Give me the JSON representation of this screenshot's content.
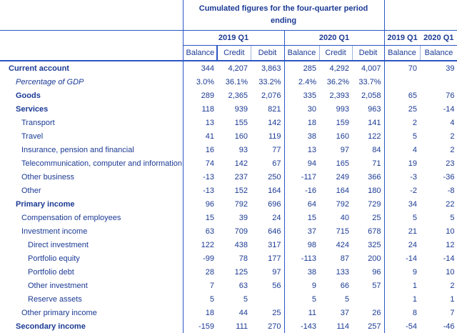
{
  "header": {
    "group_title": "Cumulated figures for the four-quarter period ending",
    "periods": [
      "2019 Q1",
      "2020 Q1"
    ],
    "quarter_periods": [
      "2019 Q1",
      "2020 Q1"
    ],
    "columns": [
      "Balance",
      "Credit",
      "Debit",
      "Balance",
      "Credit",
      "Debit",
      "Balance",
      "Balance"
    ]
  },
  "rows": [
    {
      "label": "Current account",
      "style": "bold l0",
      "v": [
        "344",
        "4,207",
        "3,863",
        "285",
        "4,292",
        "4,007",
        "70",
        "39"
      ]
    },
    {
      "label": "Percentage of GDP",
      "style": "ital l1",
      "v": [
        "3.0%",
        "36.1%",
        "33.2%",
        "2.4%",
        "36.2%",
        "33.7%",
        "",
        ""
      ]
    },
    {
      "label": "Goods",
      "style": "bold l1",
      "v": [
        "289",
        "2,365",
        "2,076",
        "335",
        "2,393",
        "2,058",
        "65",
        "76"
      ]
    },
    {
      "label": "Services",
      "style": "bold l1",
      "v": [
        "118",
        "939",
        "821",
        "30",
        "993",
        "963",
        "25",
        "-14"
      ]
    },
    {
      "label": "Transport",
      "style": "l2",
      "v": [
        "13",
        "155",
        "142",
        "18",
        "159",
        "141",
        "2",
        "4"
      ]
    },
    {
      "label": "Travel",
      "style": "l2",
      "v": [
        "41",
        "160",
        "119",
        "38",
        "160",
        "122",
        "5",
        "2"
      ]
    },
    {
      "label": "Insurance, pension and financial",
      "style": "l2",
      "v": [
        "16",
        "93",
        "77",
        "13",
        "97",
        "84",
        "4",
        "2"
      ]
    },
    {
      "label": "Telecommunication, computer and information",
      "style": "l2",
      "v": [
        "74",
        "142",
        "67",
        "94",
        "165",
        "71",
        "19",
        "23"
      ]
    },
    {
      "label": "Other business",
      "style": "l2",
      "v": [
        "-13",
        "237",
        "250",
        "-117",
        "249",
        "366",
        "-3",
        "-36"
      ]
    },
    {
      "label": "Other",
      "style": "l2",
      "v": [
        "-13",
        "152",
        "164",
        "-16",
        "164",
        "180",
        "-2",
        "-8"
      ]
    },
    {
      "label": "Primary income",
      "style": "bold l1",
      "v": [
        "96",
        "792",
        "696",
        "64",
        "792",
        "729",
        "34",
        "22"
      ]
    },
    {
      "label": "Compensation of employees",
      "style": "l2",
      "v": [
        "15",
        "39",
        "24",
        "15",
        "40",
        "25",
        "5",
        "5"
      ]
    },
    {
      "label": "Investment income",
      "style": "l2",
      "v": [
        "63",
        "709",
        "646",
        "37",
        "715",
        "678",
        "21",
        "10"
      ]
    },
    {
      "label": "Direct investment",
      "style": "l3",
      "v": [
        "122",
        "438",
        "317",
        "98",
        "424",
        "325",
        "24",
        "12"
      ]
    },
    {
      "label": "Portfolio equity",
      "style": "l3",
      "v": [
        "-99",
        "78",
        "177",
        "-113",
        "87",
        "200",
        "-14",
        "-14"
      ]
    },
    {
      "label": "Portfolio debt",
      "style": "l3",
      "v": [
        "28",
        "125",
        "97",
        "38",
        "133",
        "96",
        "9",
        "10"
      ]
    },
    {
      "label": "Other investment",
      "style": "l3",
      "v": [
        "7",
        "63",
        "56",
        "9",
        "66",
        "57",
        "1",
        "2"
      ]
    },
    {
      "label": "Reserve assets",
      "style": "l3",
      "v": [
        "5",
        "5",
        "",
        "5",
        "5",
        "",
        "1",
        "1"
      ]
    },
    {
      "label": "Other primary income",
      "style": "l2",
      "v": [
        "18",
        "44",
        "25",
        "11",
        "37",
        "26",
        "8",
        "7"
      ]
    },
    {
      "label": "Secondary income",
      "style": "bold l1",
      "v": [
        "-159",
        "111",
        "270",
        "-143",
        "114",
        "257",
        "-54",
        "-46"
      ]
    }
  ]
}
